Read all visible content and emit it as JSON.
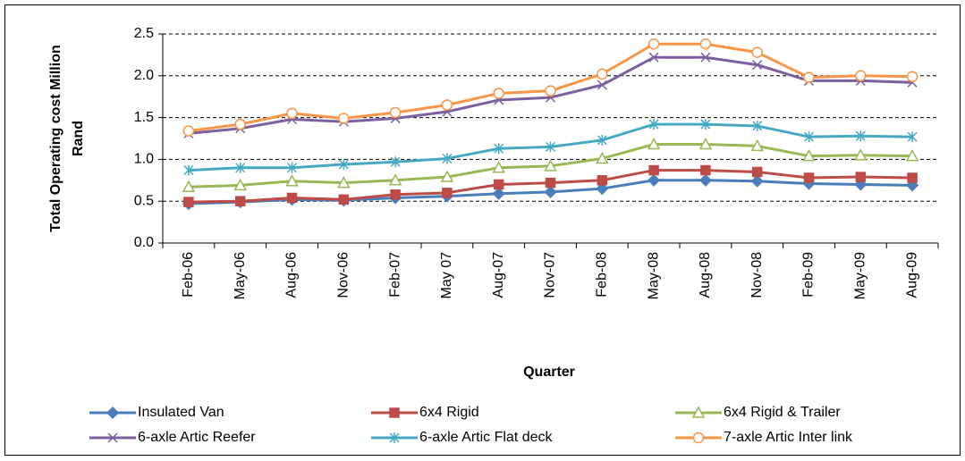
{
  "chart_data": {
    "type": "line",
    "ylabel": [
      "Total Operating cost Million",
      "Rand"
    ],
    "xlabel": "Quarter",
    "categories": [
      "Feb-06",
      "May-06",
      "Aug-06",
      "Nov-06",
      "Feb-07",
      "May 07",
      "Aug-07",
      "Nov-07",
      "Feb-08",
      "May-08",
      "Aug-08",
      "Nov-08",
      "Feb-09",
      "May-09",
      "Aug-09"
    ],
    "ylim": [
      0,
      2.5
    ],
    "yticks": [
      {
        "value": 0,
        "label": "0.0"
      },
      0.5,
      {
        "value": 1,
        "label": "1.0"
      },
      1.5,
      {
        "value": 2,
        "label": "2.0"
      },
      2.5
    ],
    "grid": true,
    "legend": "bottom",
    "series": [
      {
        "name": "Insulated Van",
        "color": "#4a7ebb",
        "marker": "diamond",
        "values": [
          0.47,
          0.49,
          0.52,
          0.51,
          0.54,
          0.56,
          0.59,
          0.61,
          0.65,
          0.75,
          0.75,
          0.74,
          0.71,
          0.7,
          0.69
        ]
      },
      {
        "name": "6x4 Rigid",
        "color": "#be4b48",
        "marker": "square",
        "values": [
          0.49,
          0.5,
          0.54,
          0.52,
          0.58,
          0.6,
          0.7,
          0.72,
          0.75,
          0.87,
          0.87,
          0.85,
          0.78,
          0.79,
          0.78
        ]
      },
      {
        "name": "6x4 Rigid & Trailer",
        "color": "#98b954",
        "marker": "triangle",
        "values": [
          0.67,
          0.69,
          0.74,
          0.72,
          0.75,
          0.79,
          0.9,
          0.92,
          1.01,
          1.18,
          1.18,
          1.16,
          1.04,
          1.05,
          1.04
        ]
      },
      {
        "name": "6-axle Artic Reefer",
        "color": "#7d60a0",
        "marker": "x",
        "values": [
          1.31,
          1.37,
          1.48,
          1.45,
          1.49,
          1.57,
          1.71,
          1.74,
          1.89,
          2.22,
          2.22,
          2.13,
          1.94,
          1.94,
          1.92
        ]
      },
      {
        "name": "6-axle Artic Flat deck",
        "color": "#46aac5",
        "marker": "star",
        "values": [
          0.87,
          0.9,
          0.9,
          0.94,
          0.97,
          1.01,
          1.13,
          1.15,
          1.23,
          1.42,
          1.42,
          1.4,
          1.27,
          1.28,
          1.27
        ]
      },
      {
        "name": "7-axle Artic Inter link",
        "color": "#f79646",
        "marker": "circle",
        "values": [
          1.34,
          1.42,
          1.55,
          1.49,
          1.56,
          1.65,
          1.79,
          1.82,
          2.02,
          2.38,
          2.38,
          2.28,
          1.98,
          2.0,
          1.99
        ]
      }
    ]
  }
}
